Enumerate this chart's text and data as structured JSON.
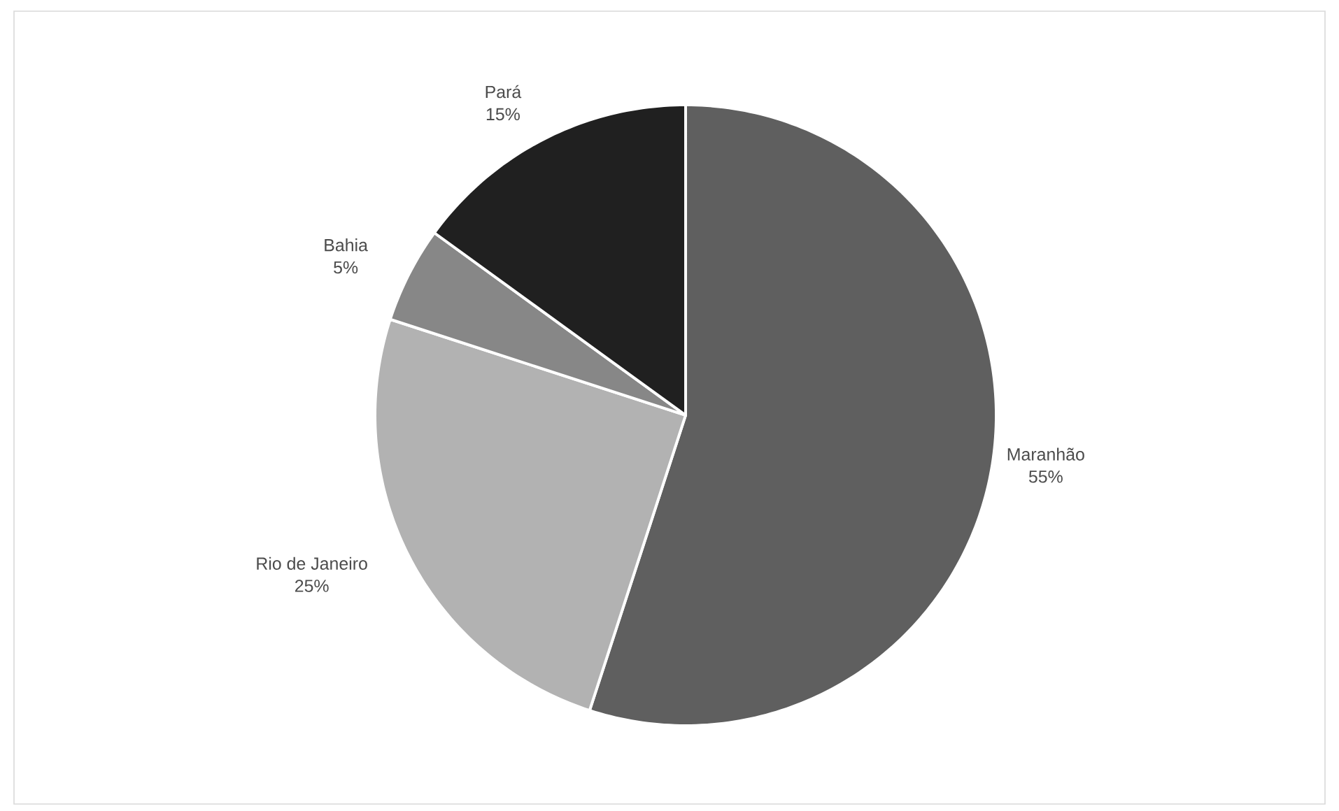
{
  "chart_data": {
    "type": "pie",
    "categories": [
      "Maranhão",
      "Rio de Janeiro",
      "Bahia",
      "Pará"
    ],
    "values": [
      55,
      25,
      5,
      15
    ],
    "value_labels": [
      "55%",
      "25%",
      "5%",
      "15%"
    ],
    "colors": [
      "#5f5f5f",
      "#b2b2b2",
      "#878787",
      "#202020"
    ]
  }
}
